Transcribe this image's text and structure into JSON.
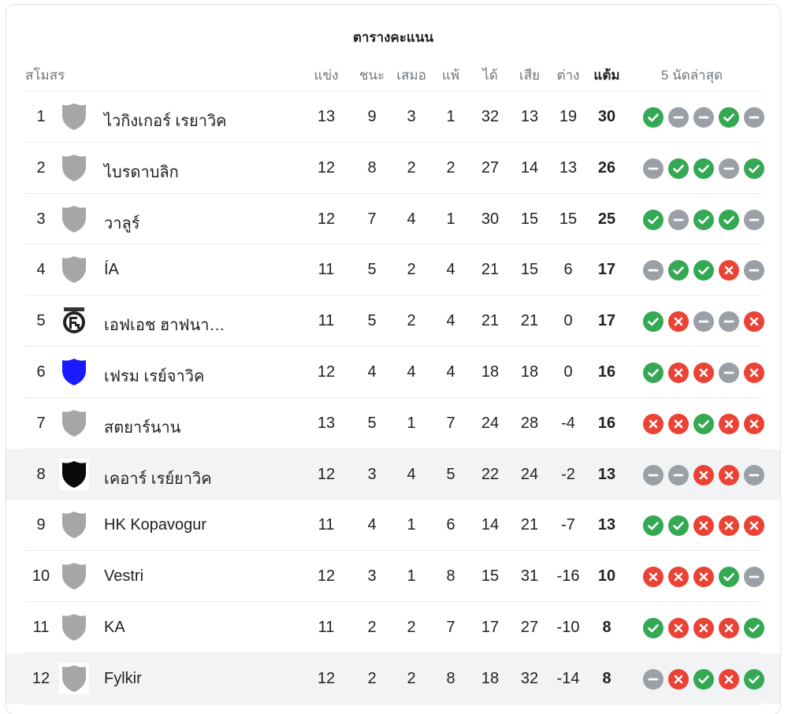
{
  "title": "ตารางคะแนน",
  "header": {
    "club": "สโมสร",
    "played": "แข่ง",
    "won": "ชนะ",
    "drawn": "เสมอ",
    "lost": "แพ้",
    "gf": "ได้",
    "ga": "เสีย",
    "gd": "ต่าง",
    "pts": "แต้ม",
    "last5": "5 นัดล่าสุด"
  },
  "colors": {
    "win": "#34a853",
    "loss": "#ea4335",
    "draw": "#9aa0a6",
    "highlight": "#f1f3f4"
  },
  "rows": [
    {
      "pos": "1",
      "crest": "grey-shield-icon",
      "name": "ไวกิงเกอร์ เรยาวิค",
      "p": "13",
      "w": "9",
      "d": "3",
      "l": "1",
      "gf": "32",
      "ga": "13",
      "gd": "19",
      "pts": "30",
      "form": [
        "W",
        "D",
        "D",
        "W",
        "D"
      ]
    },
    {
      "pos": "2",
      "crest": "grey-shield-icon",
      "name": "ไบรดาบลิก",
      "p": "12",
      "w": "8",
      "d": "2",
      "l": "2",
      "gf": "27",
      "ga": "14",
      "gd": "13",
      "pts": "26",
      "form": [
        "D",
        "W",
        "W",
        "D",
        "W"
      ]
    },
    {
      "pos": "3",
      "crest": "grey-shield-icon",
      "name": "วาลูร์",
      "p": "12",
      "w": "7",
      "d": "4",
      "l": "1",
      "gf": "30",
      "ga": "15",
      "gd": "15",
      "pts": "25",
      "form": [
        "W",
        "D",
        "W",
        "W",
        "D"
      ]
    },
    {
      "pos": "4",
      "crest": "grey-shield-icon",
      "name": "ÍA",
      "p": "11",
      "w": "5",
      "d": "2",
      "l": "4",
      "gf": "21",
      "ga": "15",
      "gd": "6",
      "pts": "17",
      "form": [
        "D",
        "W",
        "W",
        "L",
        "D"
      ]
    },
    {
      "pos": "5",
      "crest": "fh-crest-icon",
      "name": "เอฟเอช ฮาฟนา…",
      "p": "11",
      "w": "5",
      "d": "2",
      "l": "4",
      "gf": "21",
      "ga": "21",
      "gd": "0",
      "pts": "17",
      "form": [
        "W",
        "L",
        "D",
        "D",
        "L"
      ]
    },
    {
      "pos": "6",
      "crest": "blue-shield-icon",
      "name": "เฟรม เรย์จาวิค",
      "p": "12",
      "w": "4",
      "d": "4",
      "l": "4",
      "gf": "18",
      "ga": "18",
      "gd": "0",
      "pts": "16",
      "form": [
        "W",
        "L",
        "L",
        "D",
        "L"
      ]
    },
    {
      "pos": "7",
      "crest": "grey-shield-icon",
      "name": "สตยาร์นาน",
      "p": "13",
      "w": "5",
      "d": "1",
      "l": "7",
      "gf": "24",
      "ga": "28",
      "gd": "-4",
      "pts": "16",
      "form": [
        "L",
        "L",
        "W",
        "L",
        "L"
      ]
    },
    {
      "pos": "8",
      "crest": "black-shield-icon",
      "name": "เคอาร์ เรย์ยาวิค",
      "p": "12",
      "w": "3",
      "d": "4",
      "l": "5",
      "gf": "22",
      "ga": "24",
      "gd": "-2",
      "pts": "13",
      "form": [
        "D",
        "D",
        "L",
        "L",
        "D"
      ],
      "highlight": true
    },
    {
      "pos": "9",
      "crest": "grey-shield-icon",
      "name": "HK Kopavogur",
      "p": "11",
      "w": "4",
      "d": "1",
      "l": "6",
      "gf": "14",
      "ga": "21",
      "gd": "-7",
      "pts": "13",
      "form": [
        "W",
        "W",
        "L",
        "L",
        "L"
      ]
    },
    {
      "pos": "10",
      "crest": "grey-shield-icon",
      "name": "Vestri",
      "p": "12",
      "w": "3",
      "d": "1",
      "l": "8",
      "gf": "15",
      "ga": "31",
      "gd": "-16",
      "pts": "10",
      "form": [
        "L",
        "L",
        "L",
        "W",
        "D"
      ]
    },
    {
      "pos": "11",
      "crest": "grey-shield-icon",
      "name": "KA",
      "p": "11",
      "w": "2",
      "d": "2",
      "l": "7",
      "gf": "17",
      "ga": "27",
      "gd": "-10",
      "pts": "8",
      "form": [
        "W",
        "L",
        "L",
        "L",
        "W"
      ]
    },
    {
      "pos": "12",
      "crest": "grey-shield-icon",
      "name": "Fylkir",
      "p": "12",
      "w": "2",
      "d": "2",
      "l": "8",
      "gf": "18",
      "ga": "32",
      "gd": "-14",
      "pts": "8",
      "form": [
        "D",
        "L",
        "W",
        "L",
        "W"
      ],
      "highlight": true
    }
  ]
}
